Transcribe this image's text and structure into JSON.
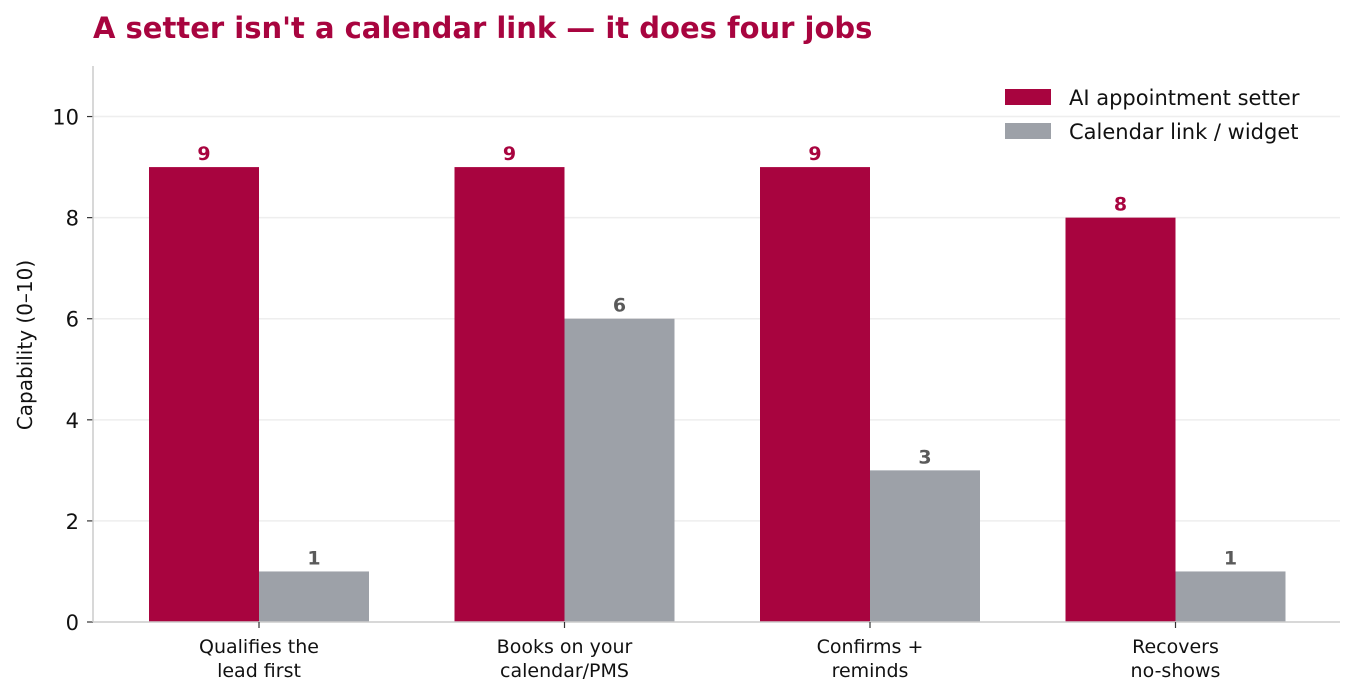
{
  "chart_data": {
    "type": "bar",
    "title": "A setter isn't a calendar link — it does four jobs",
    "ylabel": "Capability (0–10)",
    "xlabel": "",
    "ylim": [
      0,
      11
    ],
    "yticks": [
      0,
      2,
      4,
      6,
      8,
      10
    ],
    "grid": "horizontal",
    "legend_position": "top-right",
    "categories": [
      [
        "Qualifies the",
        "lead first"
      ],
      [
        "Books on your",
        "calendar/PMS"
      ],
      [
        "Confirms +",
        "reminds"
      ],
      [
        "Recovers",
        "no-shows"
      ]
    ],
    "series": [
      {
        "name": "AI appointment setter",
        "color": "#a8043f",
        "label_color": "#a8043f",
        "values": [
          9,
          9,
          9,
          8
        ]
      },
      {
        "name": "Calendar link / widget",
        "color": "#9da1a8",
        "label_color": "#5a5a5a",
        "values": [
          1,
          6,
          3,
          1
        ]
      }
    ],
    "title_color": "#a8043f",
    "grid_color": "#eeeeee",
    "axis_color": "#cccccc"
  }
}
